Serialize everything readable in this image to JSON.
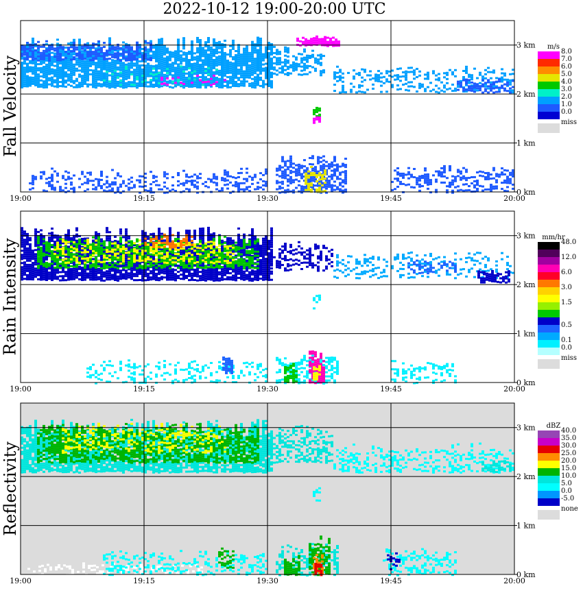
{
  "title": "2022-10-12   19:00-20:00 UTC",
  "chart_data": [
    {
      "type": "heatmap",
      "title": "Fall Velocity",
      "ylabel": "Fall Velocity",
      "x_ticks": [
        "19:00",
        "19:15",
        "19:30",
        "19:45",
        "20:00"
      ],
      "y_ticks": [
        "0 km",
        "1 km",
        "2 km",
        "3 km"
      ],
      "xlim": [
        "19:00",
        "20:00"
      ],
      "ylim_km": [
        0,
        3.5
      ],
      "background": "#ffffff",
      "legend": {
        "unit": "m/s",
        "entries": [
          {
            "label": "8.0",
            "color": "#ff00ff"
          },
          {
            "label": "7.0",
            "color": "#ff2a00"
          },
          {
            "label": "6.0",
            "color": "#ff8c00"
          },
          {
            "label": "5.0",
            "color": "#e6e600"
          },
          {
            "label": "4.0",
            "color": "#00c800"
          },
          {
            "label": "3.0",
            "color": "#00f0c8"
          },
          {
            "label": "2.0",
            "color": "#00a0ff"
          },
          {
            "label": "1.0",
            "color": "#1e5aff"
          },
          {
            "label": "0.0",
            "color": "#0000d2"
          }
        ],
        "missing": {
          "label": "miss",
          "color": "#dcdcdc"
        }
      },
      "echo_regions": [
        {
          "t0": 0.0,
          "t1": 30.5,
          "z0": 2.15,
          "z1": 3.18,
          "color_index": 6,
          "density": 0.85
        },
        {
          "t0": 0.0,
          "t1": 16.0,
          "z0": 2.7,
          "z1": 3.1,
          "color_index": 7,
          "density": 0.6
        },
        {
          "t0": 10.0,
          "t1": 24.0,
          "z0": 2.2,
          "z1": 2.6,
          "color_index": 5,
          "density": 0.15
        },
        {
          "t0": 17.0,
          "t1": 25.0,
          "z0": 2.2,
          "z1": 2.4,
          "color_index": 0,
          "density": 0.2
        },
        {
          "t0": 30.0,
          "t1": 37.0,
          "z0": 2.4,
          "z1": 3.0,
          "color_index": 6,
          "density": 0.5
        },
        {
          "t0": 33.5,
          "t1": 38.5,
          "z0": 3.0,
          "z1": 3.2,
          "color_index": 0,
          "density": 0.85
        },
        {
          "t0": 38.0,
          "t1": 59.8,
          "z0": 2.05,
          "z1": 2.6,
          "color_index": 6,
          "density": 0.35
        },
        {
          "t0": 53.0,
          "t1": 59.8,
          "z0": 2.05,
          "z1": 2.35,
          "color_index": 7,
          "density": 0.5
        },
        {
          "t0": 35.5,
          "t1": 36.5,
          "z0": 1.55,
          "z1": 1.8,
          "color_index": 4,
          "density": 0.8
        },
        {
          "t0": 35.5,
          "t1": 36.5,
          "z0": 1.42,
          "z1": 1.55,
          "color_index": 0,
          "density": 0.8
        },
        {
          "t0": 1.0,
          "t1": 30.0,
          "z0": 0.0,
          "z1": 0.5,
          "color_index": 7,
          "density": 0.35
        },
        {
          "t0": 31.0,
          "t1": 39.5,
          "z0": 0.0,
          "z1": 0.8,
          "color_index": 7,
          "density": 0.65
        },
        {
          "t0": 34.5,
          "t1": 37.0,
          "z0": 0.0,
          "z1": 0.55,
          "color_index": 3,
          "density": 0.6
        },
        {
          "t0": 45.0,
          "t1": 59.8,
          "z0": 0.0,
          "z1": 0.55,
          "color_index": 7,
          "density": 0.35
        }
      ]
    },
    {
      "type": "heatmap",
      "title": "Rain Intensity",
      "ylabel": "Rain Intensity",
      "x_ticks": [
        "19:00",
        "19:15",
        "19:30",
        "19:45",
        "20:00"
      ],
      "y_ticks": [
        "0 km",
        "1 km",
        "2 km",
        "3 km"
      ],
      "xlim": [
        "19:00",
        "20:00"
      ],
      "ylim_km": [
        0,
        3.5
      ],
      "background": "#ffffff",
      "legend": {
        "unit": "mm/hr",
        "entries": [
          {
            "label": "48.0",
            "color": "#000000"
          },
          {
            "label": "",
            "color": "#50005a"
          },
          {
            "label": "12.0",
            "color": "#a000a0"
          },
          {
            "label": "",
            "color": "#ff00b4"
          },
          {
            "label": "6.0",
            "color": "#ff0028"
          },
          {
            "label": "",
            "color": "#ff7800"
          },
          {
            "label": "3.0",
            "color": "#ffd200"
          },
          {
            "label": "",
            "color": "#ffff00"
          },
          {
            "label": "1.5",
            "color": "#96f000"
          },
          {
            "label": "",
            "color": "#00c800"
          },
          {
            "label": "",
            "color": "#0000c8"
          },
          {
            "label": "0.5",
            "color": "#1e64ff"
          },
          {
            "label": "",
            "color": "#00aaff"
          },
          {
            "label": "0.1",
            "color": "#00f0ff"
          },
          {
            "label": "0.0",
            "color": "#b4ffff"
          }
        ],
        "missing": {
          "label": "miss",
          "color": "#dcdcdc"
        }
      },
      "echo_regions": [
        {
          "t0": 0.0,
          "t1": 30.5,
          "z0": 2.1,
          "z1": 3.18,
          "color_index": 10,
          "density": 0.85
        },
        {
          "t0": 2.0,
          "t1": 29.0,
          "z0": 2.35,
          "z1": 3.0,
          "color_index": 9,
          "density": 0.6
        },
        {
          "t0": 4.0,
          "t1": 26.0,
          "z0": 2.45,
          "z1": 2.95,
          "color_index": 7,
          "density": 0.35
        },
        {
          "t0": 15.0,
          "t1": 21.0,
          "z0": 2.75,
          "z1": 3.05,
          "color_index": 5,
          "density": 0.4
        },
        {
          "t0": 30.0,
          "t1": 38.0,
          "z0": 2.3,
          "z1": 2.9,
          "color_index": 10,
          "density": 0.4
        },
        {
          "t0": 38.0,
          "t1": 59.8,
          "z0": 2.15,
          "z1": 2.7,
          "color_index": 12,
          "density": 0.3
        },
        {
          "t0": 47.0,
          "t1": 53.0,
          "z0": 2.25,
          "z1": 2.55,
          "color_index": 11,
          "density": 0.35
        },
        {
          "t0": 55.5,
          "t1": 59.5,
          "z0": 2.05,
          "z1": 2.3,
          "color_index": 10,
          "density": 0.7
        },
        {
          "t0": 35.5,
          "t1": 36.5,
          "z0": 1.5,
          "z1": 1.8,
          "color_index": 13,
          "density": 0.5
        },
        {
          "t0": 8.0,
          "t1": 30.0,
          "z0": 0.0,
          "z1": 0.5,
          "color_index": 13,
          "density": 0.3
        },
        {
          "t0": 24.5,
          "t1": 25.8,
          "z0": 0.2,
          "z1": 0.55,
          "color_index": 11,
          "density": 0.7
        },
        {
          "t0": 31.0,
          "t1": 38.5,
          "z0": 0.0,
          "z1": 0.6,
          "color_index": 13,
          "density": 0.55
        },
        {
          "t0": 32.0,
          "t1": 33.5,
          "z0": 0.0,
          "z1": 0.45,
          "color_index": 9,
          "density": 0.7
        },
        {
          "t0": 35.0,
          "t1": 37.0,
          "z0": 0.0,
          "z1": 0.7,
          "color_index": 3,
          "density": 0.7
        },
        {
          "t0": 35.5,
          "t1": 36.5,
          "z0": 0.05,
          "z1": 0.4,
          "color_index": 7,
          "density": 0.6
        },
        {
          "t0": 45.0,
          "t1": 53.0,
          "z0": 0.0,
          "z1": 0.5,
          "color_index": 13,
          "density": 0.35
        }
      ]
    },
    {
      "type": "heatmap",
      "title": "Reflectivity",
      "ylabel": "Reflectivity",
      "x_ticks": [
        "19:00",
        "19:15",
        "19:30",
        "19:45",
        "20:00"
      ],
      "y_ticks": [
        "0 km",
        "1 km",
        "2 km",
        "3 km"
      ],
      "xlim": [
        "19:00",
        "20:00"
      ],
      "ylim_km": [
        0,
        3.5
      ],
      "background": "#dcdcdc",
      "legend": {
        "unit": "dBZ",
        "entries": [
          {
            "label": "40.0",
            "color": "#9646b4"
          },
          {
            "label": "35.0",
            "color": "#c800c8"
          },
          {
            "label": "30.0",
            "color": "#e60000"
          },
          {
            "label": "25.0",
            "color": "#ff8c00"
          },
          {
            "label": "20.0",
            "color": "#ffff00"
          },
          {
            "label": "15.0",
            "color": "#00b400"
          },
          {
            "label": "10.0",
            "color": "#00e6dc"
          },
          {
            "label": "5.0",
            "color": "#00ffff"
          },
          {
            "label": "0.0",
            "color": "#0096ff"
          },
          {
            "label": "-5.0",
            "color": "#0000c8"
          }
        ],
        "missing": {
          "label": "none",
          "color": "#dcdcdc"
        }
      },
      "echo_regions": [
        {
          "t0": 0.0,
          "t1": 30.5,
          "z0": 2.1,
          "z1": 3.18,
          "color_index": 6,
          "density": 0.85
        },
        {
          "t0": 2.0,
          "t1": 29.0,
          "z0": 2.3,
          "z1": 3.1,
          "color_index": 5,
          "density": 0.65
        },
        {
          "t0": 5.0,
          "t1": 25.0,
          "z0": 2.5,
          "z1": 3.1,
          "color_index": 4,
          "density": 0.3
        },
        {
          "t0": 30.0,
          "t1": 38.0,
          "z0": 2.3,
          "z1": 3.1,
          "color_index": 6,
          "density": 0.45
        },
        {
          "t0": 38.0,
          "t1": 59.8,
          "z0": 2.1,
          "z1": 2.7,
          "color_index": 7,
          "density": 0.35
        },
        {
          "t0": 56.0,
          "t1": 59.5,
          "z0": 2.1,
          "z1": 2.35,
          "color_index": 6,
          "density": 0.6
        },
        {
          "t0": 35.5,
          "t1": 36.5,
          "z0": 1.5,
          "z1": 1.8,
          "color_index": 7,
          "density": 0.5
        },
        {
          "t0": 0.5,
          "t1": 22.0,
          "z0": 0.0,
          "z1": 0.25,
          "color_index": -1,
          "density": 0.3
        },
        {
          "t0": 10.0,
          "t1": 30.0,
          "z0": 0.0,
          "z1": 0.5,
          "color_index": 7,
          "density": 0.3
        },
        {
          "t0": 24.0,
          "t1": 26.0,
          "z0": 0.15,
          "z1": 0.6,
          "color_index": 5,
          "density": 0.55
        },
        {
          "t0": 31.0,
          "t1": 38.5,
          "z0": 0.0,
          "z1": 0.65,
          "color_index": 6,
          "density": 0.55
        },
        {
          "t0": 32.0,
          "t1": 34.0,
          "z0": 0.0,
          "z1": 0.4,
          "color_index": 5,
          "density": 0.65
        },
        {
          "t0": 35.0,
          "t1": 37.5,
          "z0": 0.0,
          "z1": 0.8,
          "color_index": 5,
          "density": 0.75
        },
        {
          "t0": 35.5,
          "t1": 36.8,
          "z0": 0.0,
          "z1": 0.45,
          "color_index": 3,
          "density": 0.75
        },
        {
          "t0": 35.7,
          "t1": 36.5,
          "z0": 0.0,
          "z1": 0.3,
          "color_index": 2,
          "density": 0.8
        },
        {
          "t0": 44.0,
          "t1": 53.0,
          "z0": 0.0,
          "z1": 0.55,
          "color_index": 7,
          "density": 0.4
        },
        {
          "t0": 44.5,
          "t1": 46.0,
          "z0": 0.1,
          "z1": 0.5,
          "color_index": 9,
          "density": 0.35
        }
      ]
    }
  ]
}
